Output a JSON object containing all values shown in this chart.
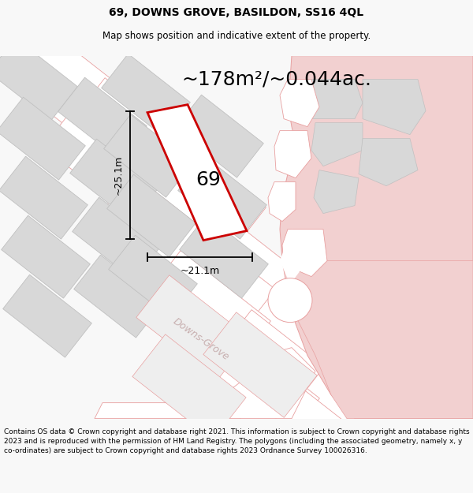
{
  "title_line1": "69, DOWNS GROVE, BASILDON, SS16 4QL",
  "title_line2": "Map shows position and indicative extent of the property.",
  "area_text": "~178m²/~0.044ac.",
  "label_69": "69",
  "dim_vertical": "~25.1m",
  "dim_horizontal": "~21.1m",
  "street_label": "Downs-Grove",
  "footer_text": "Contains OS data © Crown copyright and database right 2021. This information is subject to Crown copyright and database rights 2023 and is reproduced with the permission of HM Land Registry. The polygons (including the associated geometry, namely x, y co-ordinates) are subject to Crown copyright and database rights 2023 Ordnance Survey 100026316.",
  "bg_color": "#f8f8f8",
  "map_bg": "#f8f8f8",
  "road_fill": "#f2d0d0",
  "road_stroke": "#e8a0a0",
  "road_lw": 0.7,
  "building_fill": "#d8d8d8",
  "building_stroke": "#c0c0c0",
  "block_fill": "#e8e8e8",
  "block_stroke": "#d0a0a0",
  "plot_stroke": "#cc0000",
  "plot_fill": "#ffffff",
  "dim_line_color": "#000000",
  "title_color": "#000000",
  "footer_color": "#000000",
  "street_color": "#c8b0b0",
  "figsize": [
    6.0,
    6.25
  ],
  "dpi": 100,
  "map_xlim": [
    0,
    600
  ],
  "map_ylim": [
    0,
    460
  ],
  "title_fontsize": 10,
  "subtitle_fontsize": 8.5,
  "area_fontsize": 18,
  "label_fontsize": 18,
  "dim_fontsize": 9,
  "street_fontsize": 9,
  "footer_fontsize": 6.5
}
